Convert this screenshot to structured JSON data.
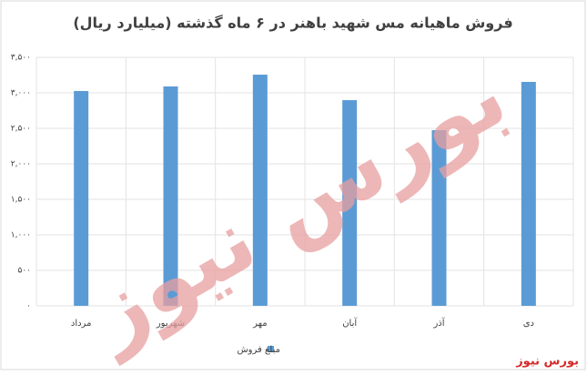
{
  "chart_data": {
    "type": "bar",
    "title": "فروش ماهیانه مس شهید باهنر در ۶ ماه گذشته (میلیارد ریال)",
    "categories": [
      "مرداد",
      "شهریور",
      "مهر",
      "آبان",
      "آذر",
      "دی"
    ],
    "series": [
      {
        "name": "مبلغ فروش",
        "color": "#5b9bd5",
        "values": [
          3026,
          3090,
          3256,
          2897,
          2474,
          3154
        ]
      }
    ],
    "ylim": [
      0,
      3500
    ],
    "yticks": [
      {
        "value": 0,
        "label": "۰"
      },
      {
        "value": 500,
        "label": "۵۰۰"
      },
      {
        "value": 1000,
        "label": "۱,۰۰۰"
      },
      {
        "value": 1500,
        "label": "۱,۵۰۰"
      },
      {
        "value": 2000,
        "label": "۲,۰۰۰"
      },
      {
        "value": 2500,
        "label": "۲,۵۰۰"
      },
      {
        "value": 3000,
        "label": "۳,۰۰۰"
      },
      {
        "value": 3500,
        "label": "۳,۵۰۰"
      }
    ],
    "grid": true,
    "watermark": "بورس نیوز",
    "brand": "بورس نیوز"
  }
}
